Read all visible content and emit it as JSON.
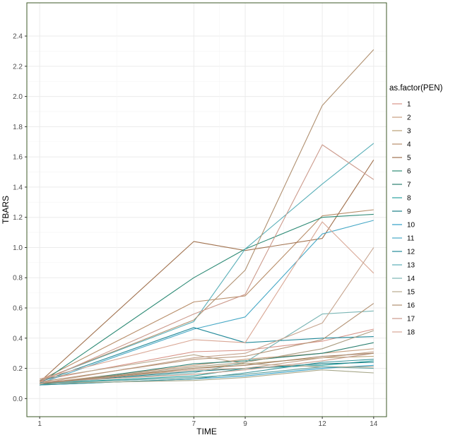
{
  "chart_data": {
    "type": "line",
    "xlabel": "TIME",
    "ylabel": "TBARS",
    "x_ticks": [
      1,
      7,
      9,
      12,
      14
    ],
    "y_ticks": [
      0.0,
      0.2,
      0.4,
      0.6,
      0.8,
      1.0,
      1.2,
      1.4,
      1.6,
      1.8,
      2.0,
      2.2,
      2.4
    ],
    "y_tick_labels": [
      "0.0",
      "0.2",
      "0.4",
      "0.6",
      "0.8",
      "1.0",
      "1.2",
      "1.4",
      "1.6",
      "1.8",
      "2.0",
      "2.2",
      "2.4"
    ],
    "xlim": [
      0.5,
      14.5
    ],
    "ylim": [
      -0.12,
      2.62
    ],
    "grid": true,
    "legend": {
      "title": "as.factor(PEN)",
      "position": "right",
      "entries": [
        "1",
        "2",
        "3",
        "4",
        "5",
        "6",
        "7",
        "8",
        "9",
        "10",
        "11",
        "12",
        "13",
        "14",
        "15",
        "16",
        "17",
        "18"
      ]
    },
    "x": [
      1,
      7,
      9,
      12,
      14
    ],
    "series_lines": [
      {
        "key": "1",
        "color": "#d89488",
        "values": [
          0.12,
          0.31,
          0.32,
          0.38,
          0.46
        ]
      },
      {
        "key": "2",
        "color": "#c79e7e",
        "values": [
          0.1,
          0.22,
          0.26,
          0.3,
          0.33
        ]
      },
      {
        "key": "3",
        "color": "#b9a176",
        "values": [
          0.09,
          0.2,
          0.23,
          0.27,
          0.28
        ]
      },
      {
        "key": "4",
        "color": "#b88e6a",
        "values": [
          0.12,
          0.64,
          0.68,
          1.21,
          1.25
        ]
      },
      {
        "key": "5",
        "color": "#a1724f",
        "values": [
          0.11,
          1.04,
          0.98,
          1.06,
          1.58
        ]
      },
      {
        "key": "6",
        "color": "#2e8b76",
        "values": [
          0.1,
          0.8,
          0.99,
          1.2,
          1.22
        ]
      },
      {
        "key": "7",
        "color": "#2a7f70",
        "values": [
          0.09,
          0.23,
          0.25,
          0.3,
          0.37
        ]
      },
      {
        "key": "8",
        "color": "#2ca2a0",
        "values": [
          0.1,
          0.15,
          0.2,
          0.22,
          0.25
        ]
      },
      {
        "key": "9",
        "color": "#1a7f86",
        "values": [
          0.1,
          0.18,
          0.2,
          0.23,
          0.24
        ]
      },
      {
        "key": "10",
        "color": "#2e9ec6",
        "values": [
          0.09,
          0.13,
          0.15,
          0.2,
          0.22
        ]
      },
      {
        "key": "11",
        "color": "#46a8c6",
        "values": [
          0.1,
          0.46,
          0.54,
          1.09,
          1.18
        ]
      },
      {
        "key": "12",
        "color": "#238a9a",
        "values": [
          0.11,
          0.47,
          0.37,
          0.4,
          0.41
        ]
      },
      {
        "key": "13",
        "color": "#59afb8",
        "values": [
          0.12,
          0.51,
          0.99,
          1.42,
          1.69
        ]
      },
      {
        "key": "14",
        "color": "#7bb6b5",
        "values": [
          0.1,
          0.17,
          0.24,
          0.56,
          0.58
        ]
      },
      {
        "key": "15",
        "color": "#b9a98e",
        "values": [
          0.13,
          0.29,
          0.23,
          0.21,
          0.21
        ]
      },
      {
        "key": "16",
        "color": "#b09070",
        "values": [
          0.12,
          0.52,
          0.85,
          1.94,
          2.31
        ]
      },
      {
        "key": "17",
        "color": "#cc9a8c",
        "values": [
          0.11,
          0.56,
          0.69,
          1.68,
          1.45
        ]
      },
      {
        "key": "18",
        "color": "#d9a795",
        "values": [
          0.13,
          0.39,
          0.37,
          1.17,
          0.83
        ]
      },
      {
        "key": "",
        "color": "#c6a48e",
        "values": [
          0.1,
          0.27,
          0.3,
          0.5,
          1.0
        ]
      },
      {
        "key": "",
        "color": "#b39274",
        "values": [
          0.11,
          0.26,
          0.28,
          0.39,
          0.63
        ]
      },
      {
        "key": "",
        "color": "#aa9c80",
        "values": [
          0.1,
          0.21,
          0.24,
          0.33,
          0.45
        ]
      },
      {
        "key": "",
        "color": "#c4a28a",
        "values": [
          0.1,
          0.19,
          0.2,
          0.27,
          0.31
        ]
      },
      {
        "key": "",
        "color": "#3a949a",
        "values": [
          0.09,
          0.13,
          0.17,
          0.24,
          0.26
        ]
      },
      {
        "key": "",
        "color": "#a7a78a",
        "values": [
          0.1,
          0.12,
          0.14,
          0.19,
          0.17
        ]
      },
      {
        "key": "",
        "color": "#5e9f9c",
        "values": [
          0.1,
          0.14,
          0.16,
          0.21,
          0.2
        ]
      },
      {
        "key": "",
        "color": "#c59f8f",
        "values": [
          0.11,
          0.16,
          0.19,
          0.25,
          0.3
        ]
      },
      {
        "key": "",
        "color": "#a38062",
        "values": [
          0.1,
          0.2,
          0.22,
          0.28,
          0.3
        ]
      }
    ]
  }
}
